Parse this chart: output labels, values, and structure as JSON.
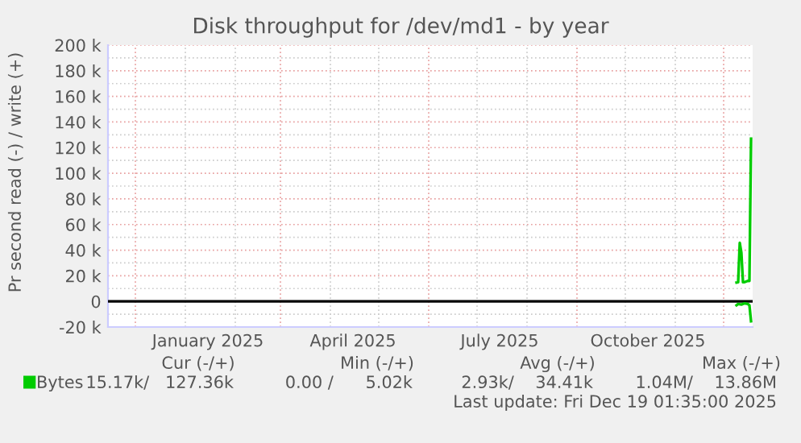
{
  "chart_data": {
    "type": "line",
    "title": "Disk throughput for /dev/md1 - by year",
    "ylabel": "Pr second read (-) / write (+)",
    "series": [
      {
        "name": "Bytes",
        "color": "#00cc00",
        "x": [
          "2025-12-09",
          "2025-12-10",
          "2025-12-11",
          "2025-12-12",
          "2025-12-13",
          "2025-12-14",
          "2025-12-16",
          "2025-12-17",
          "2025-12-18"
        ],
        "values": [
          14700,
          15000,
          45700,
          38000,
          15000,
          15000,
          16000,
          16000,
          127000
        ]
      },
      {
        "color": "#00cc00",
        "x": [
          "2025-12-09",
          "2025-12-10",
          "2025-12-12",
          "2025-12-14",
          "2025-12-16",
          "2025-12-17",
          "2025-12-18"
        ],
        "values": [
          -3000,
          -2000,
          -2500,
          -1500,
          -2000,
          -3000,
          -15500
        ]
      }
    ],
    "xlim": [
      "2024-11-14",
      "2025-12-19"
    ],
    "xticks": [
      {
        "value": "2025-01-15",
        "label": "January 2025"
      },
      {
        "value": "2025-04-15",
        "label": "April 2025"
      },
      {
        "value": "2025-07-15",
        "label": "July 2025"
      },
      {
        "value": "2025-10-15",
        "label": "October 2025"
      }
    ],
    "ylim": [
      -20000,
      200000
    ],
    "yticks": [
      {
        "value": -20000,
        "label": "-20 k"
      },
      0,
      {
        "value": 20000,
        "label": "20 k"
      },
      {
        "value": 40000,
        "label": "40 k"
      },
      {
        "value": 60000,
        "label": "60 k"
      },
      {
        "value": 80000,
        "label": "80 k"
      },
      {
        "value": 100000,
        "label": "100 k"
      },
      {
        "value": 120000,
        "label": "120 k"
      },
      {
        "value": 140000,
        "label": "140 k"
      },
      {
        "value": 160000,
        "label": "160 k"
      },
      {
        "value": 180000,
        "label": "180 k"
      },
      {
        "value": 200000,
        "label": "200 k"
      }
    ],
    "ref_lines": [
      {
        "axis": "y",
        "value": 0,
        "color": "#000000"
      }
    ],
    "grid": true,
    "legend": "bottom left",
    "marker": "none",
    "line_style": "solid",
    "annotations": [
      "Cur (-/+)",
      "Min (-/+)",
      "Avg (-/+)",
      "Max (-/+)",
      "15.17k/   127.36k",
      "0.00 /      5.02k",
      "2.93k/    34.41k",
      "1.04M/    13.86M",
      "Last update: Fri Dec 19 01:35:00 2025"
    ]
  }
}
